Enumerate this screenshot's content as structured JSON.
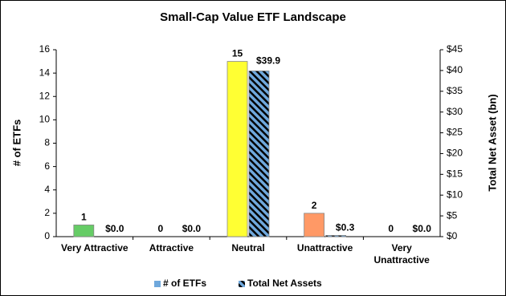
{
  "chart_data": {
    "type": "bar",
    "title": "Small-Cap Value ETF Landscape",
    "categories": [
      "Very Attractive",
      "Attractive",
      "Neutral",
      "Unattractive",
      "Very Unattractive"
    ],
    "series": [
      {
        "name": "# of ETFs",
        "color": "#6fa8dc",
        "colors": [
          "#66cc66",
          "#bfbfbf",
          "#ffff33",
          "#ff9966",
          "#bfbfbf"
        ],
        "values": [
          1,
          0,
          15,
          2,
          0
        ]
      },
      {
        "name": "Total Net Assets",
        "color": "#6fa8dc",
        "axis": "y2",
        "values": [
          0.0,
          0.0,
          39.9,
          0.3,
          0.0
        ],
        "value_labels": [
          "$0.0",
          "$0.0",
          "$39.9",
          "$0.3",
          "$0.0"
        ]
      }
    ],
    "ylabel": "# of ETFs",
    "y2label": "Total Net Asset (bn)",
    "ylim": [
      0,
      16
    ],
    "yticks": [
      0,
      2,
      4,
      6,
      8,
      10,
      12,
      14,
      16
    ],
    "y2lim": [
      0,
      45
    ],
    "y2ticks": [
      {
        "value": 0,
        "label": "$0"
      },
      {
        "value": 5,
        "label": "$5"
      },
      {
        "value": 10,
        "label": "$10"
      },
      {
        "value": 15,
        "label": "$15"
      },
      {
        "value": 20,
        "label": "$20"
      },
      {
        "value": 25,
        "label": "$25"
      },
      {
        "value": 30,
        "label": "$30"
      },
      {
        "value": 35,
        "label": "$35"
      },
      {
        "value": 40,
        "label": "$40"
      },
      {
        "value": 45,
        "label": "$45"
      }
    ],
    "grid": false,
    "legend": "bottom"
  }
}
